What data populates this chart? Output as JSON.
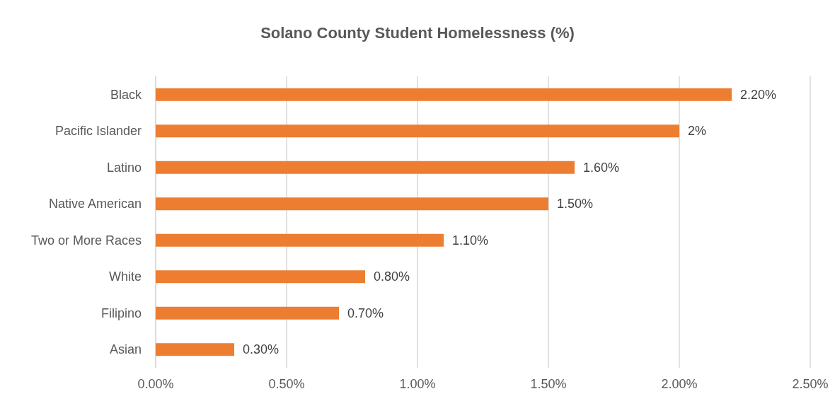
{
  "chart_data": {
    "type": "bar",
    "orientation": "horizontal",
    "title": "Solano County Student Homelessness (%)",
    "categories": [
      "Black",
      "Pacific Islander",
      "Latino",
      "Native American",
      "Two or More Races",
      "White",
      "Filipino",
      "Asian"
    ],
    "values": [
      2.2,
      2,
      1.6,
      1.5,
      1.1,
      0.8,
      0.7,
      0.3
    ],
    "value_labels": [
      "2.20%",
      "2%",
      "1.60%",
      "1.50%",
      "1.10%",
      "0.80%",
      "0.70%",
      "0.30%"
    ],
    "color": "#ed7d31",
    "xlim": [
      0,
      2.5
    ],
    "xticks": [
      {
        "value": 0,
        "label": "0.00%"
      },
      {
        "value": 0.5,
        "label": "0.50%"
      },
      {
        "value": 1,
        "label": "1.00%"
      },
      {
        "value": 1.5,
        "label": "1.50%"
      },
      {
        "value": 2,
        "label": "2.00%"
      },
      {
        "value": 2.5,
        "label": "2.50%"
      }
    ],
    "grid": "x"
  }
}
